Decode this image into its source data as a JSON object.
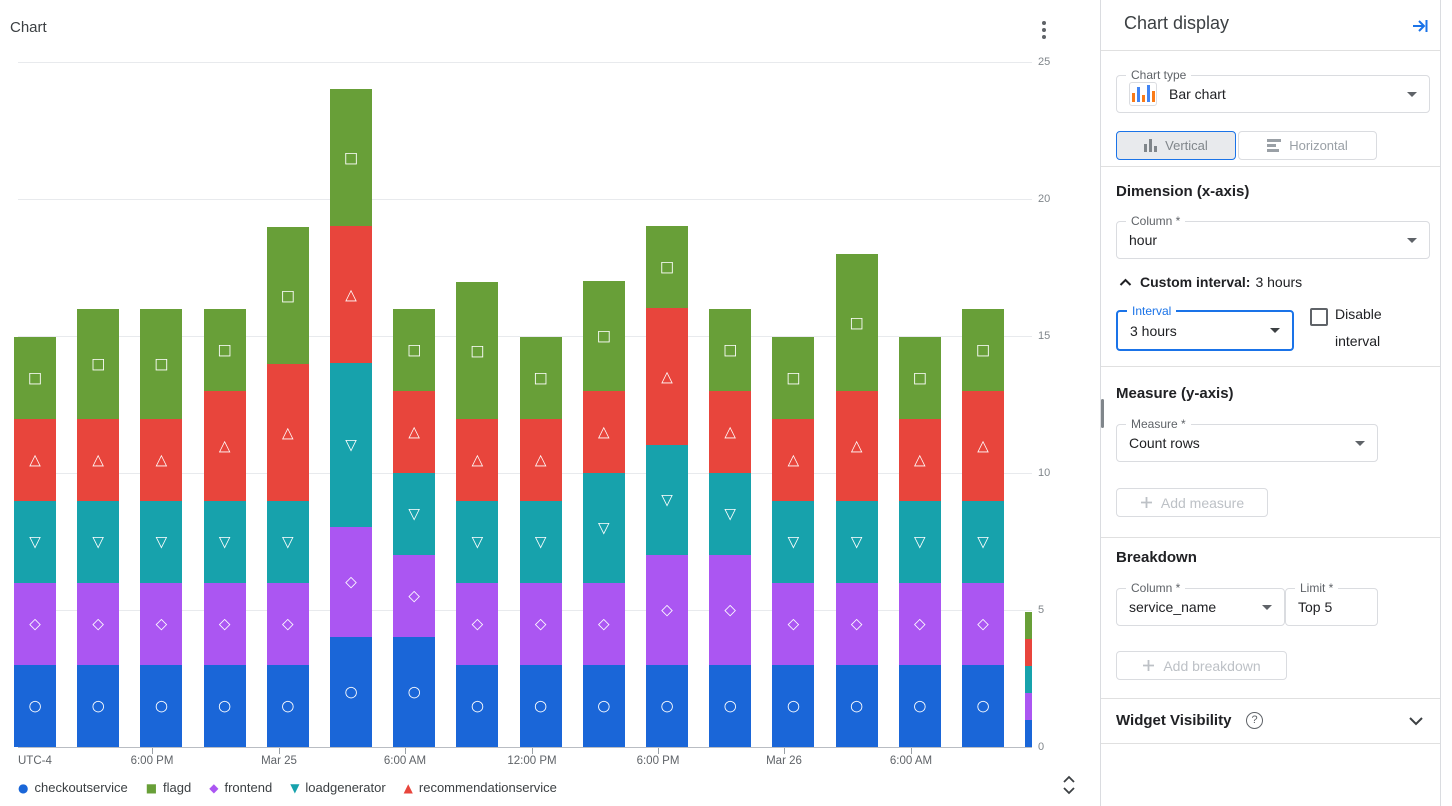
{
  "chart_panel": {
    "title": "Chart",
    "timezone_label": "UTC-4",
    "legend_order": [
      "checkoutservice",
      "flagd",
      "frontend",
      "loadgenerator",
      "recommendationservice"
    ]
  },
  "chart_data": {
    "type": "bar",
    "stacked": true,
    "orientation": "vertical",
    "title": "Chart",
    "xlabel": "hour",
    "ylabel": "Count rows",
    "x_interval": "3 hours",
    "timezone": "UTC-4",
    "ylim": [
      0,
      25
    ],
    "y_ticks": [
      25,
      20,
      15,
      10,
      5,
      0
    ],
    "grid": true,
    "legend_position": "bottom",
    "x_tick_labels": [
      "6:00 PM",
      "Mar 25",
      "6:00 AM",
      "12:00 PM",
      "6:00 PM",
      "Mar 26",
      "6:00 AM"
    ],
    "categories": [
      1,
      2,
      3,
      4,
      5,
      6,
      7,
      8,
      9,
      10,
      11,
      12,
      13,
      14,
      15,
      16,
      17
    ],
    "partial_last_bar": true,
    "series": [
      {
        "name": "checkoutservice",
        "color": "#1a66d8",
        "marker": "circle",
        "values": [
          3,
          3,
          3,
          3,
          3,
          4,
          4,
          3,
          3,
          3,
          3,
          3,
          3,
          3,
          3,
          3,
          1
        ]
      },
      {
        "name": "frontend",
        "color": "#ab56f2",
        "marker": "diamond",
        "values": [
          3,
          3,
          3,
          3,
          3,
          4,
          3,
          3,
          3,
          3,
          4,
          4,
          3,
          3,
          3,
          3,
          1
        ]
      },
      {
        "name": "loadgenerator",
        "color": "#17a2ac",
        "marker": "triangle-down",
        "values": [
          3,
          3,
          3,
          3,
          3,
          6,
          3,
          3,
          3,
          4,
          4,
          3,
          3,
          3,
          3,
          3,
          1
        ]
      },
      {
        "name": "recommendationservice",
        "color": "#e8453c",
        "marker": "triangle-up",
        "values": [
          3,
          3,
          3,
          4,
          5,
          5,
          3,
          3,
          3,
          3,
          5,
          3,
          3,
          4,
          3,
          4,
          1
        ]
      },
      {
        "name": "flagd",
        "color": "#689f38",
        "marker": "square",
        "values": [
          3,
          4,
          4,
          3,
          5,
          5,
          3,
          5,
          3,
          4,
          3,
          3,
          3,
          5,
          3,
          3,
          1
        ]
      }
    ]
  },
  "display_panel": {
    "title": "Chart display",
    "accent_color": "#1a73e8",
    "chart_type": {
      "label": "Chart type",
      "value": "Bar chart"
    },
    "orientation": {
      "vertical_label": "Vertical",
      "horizontal_label": "Horizontal",
      "selected": "Vertical"
    },
    "dimension": {
      "heading": "Dimension (x-axis)",
      "column": {
        "label": "Column *",
        "value": "hour"
      },
      "custom_interval_label": "Custom interval:",
      "custom_interval_value": "3 hours",
      "interval": {
        "label": "Interval",
        "value": "3 hours",
        "focused": true
      },
      "disable_interval_label": "Disable interval",
      "disable_interval_checked": false
    },
    "measure": {
      "heading": "Measure (y-axis)",
      "field": {
        "label": "Measure *",
        "value": "Count rows"
      },
      "add_label": "Add measure"
    },
    "breakdown": {
      "heading": "Breakdown",
      "column": {
        "label": "Column *",
        "value": "service_name"
      },
      "limit": {
        "label": "Limit *",
        "value": "Top 5"
      },
      "add_label": "Add breakdown"
    },
    "widget_visibility": {
      "heading": "Widget Visibility",
      "collapsed": true
    }
  },
  "icons": {
    "help_glyph": "?",
    "kebab-menu-icon": "three vertical dots",
    "collapse-panel-icon": "arrow into bar (right)",
    "bar-chart-type-icon": "mini vertical bars orange/blue",
    "vertical-bars-icon": "vertical bars",
    "horizontal-bars-icon": "horizontal bars",
    "chevron-up-icon": "collapse section",
    "chevron-down-icon": "expand section",
    "checkbox-unchecked-icon": "empty checkbox",
    "plus-icon": "plus",
    "unfold-more-icon": "up and down chevrons"
  }
}
